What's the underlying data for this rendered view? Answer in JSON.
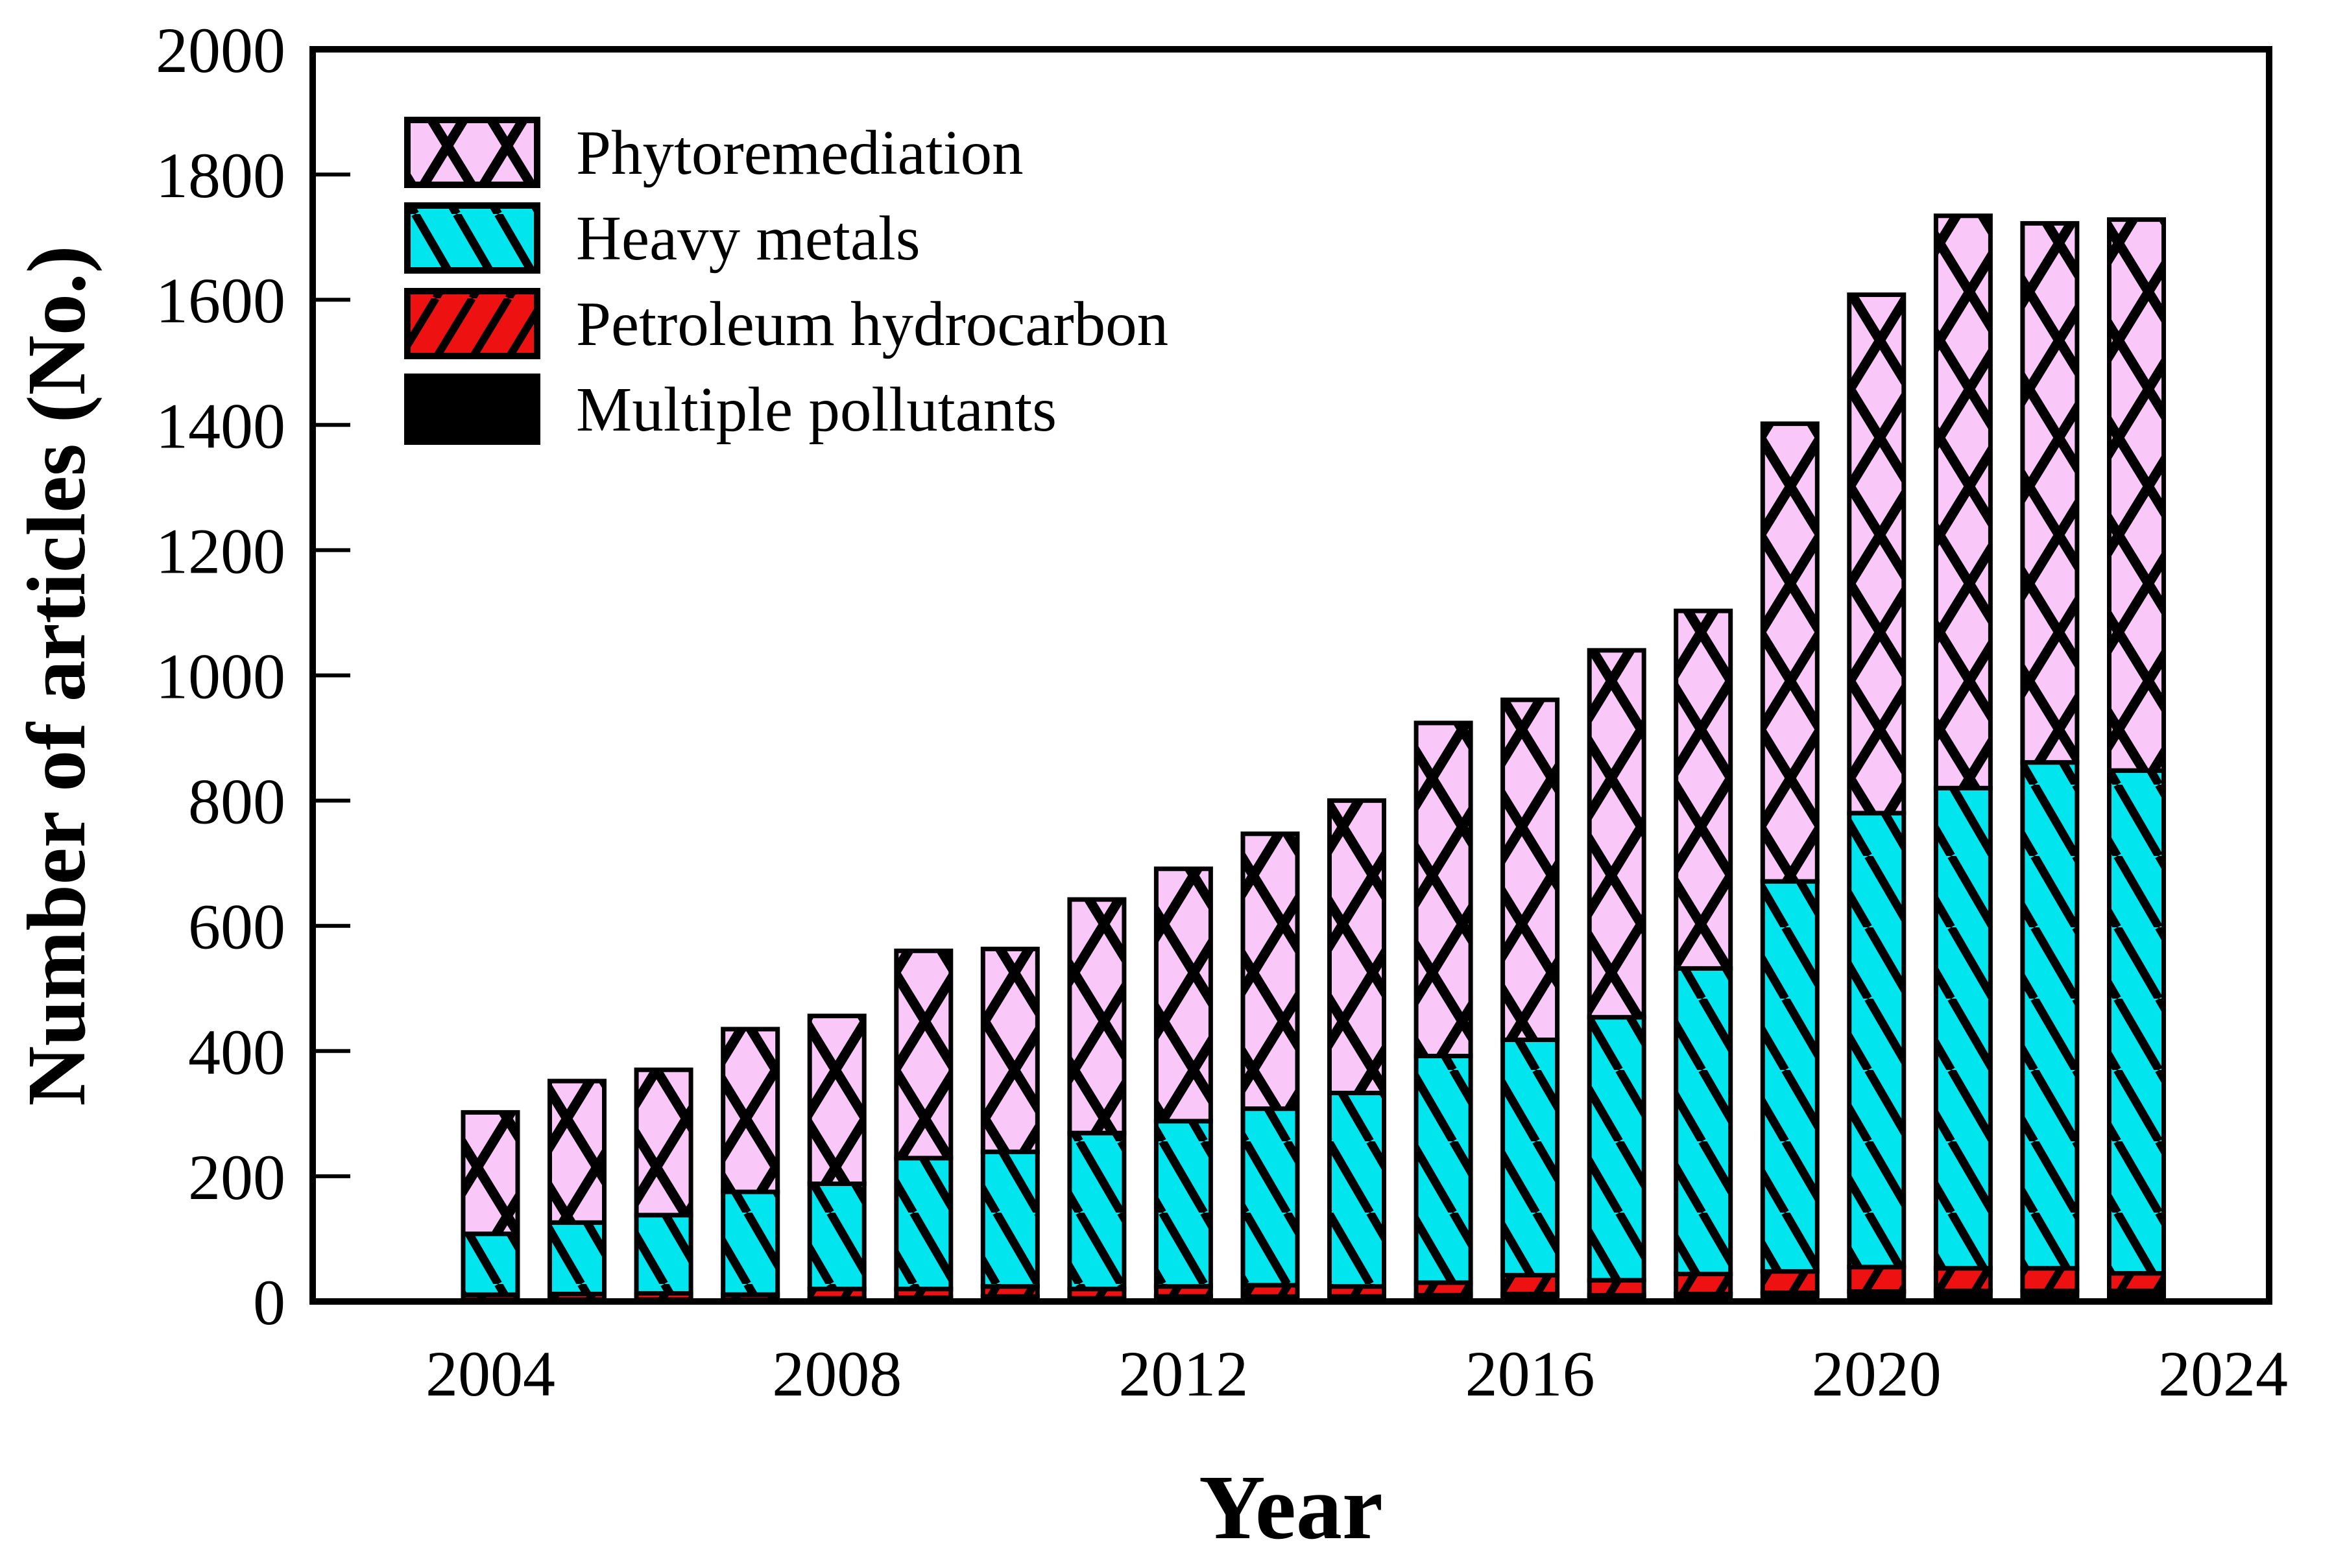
{
  "figure": {
    "background": "#ffffff",
    "y_axis": {
      "title": "Number of articles (No.)",
      "min": 0,
      "max": 2000,
      "major_tick_step": 200,
      "tick_labels": [
        "0",
        "200",
        "400",
        "600",
        "800",
        "1000",
        "1200",
        "1400",
        "1600",
        "1800",
        "2000"
      ]
    },
    "x_axis": {
      "title": "Year",
      "tick_labels": [
        "2004",
        "2008",
        "2012",
        "2016",
        "2020",
        "2024"
      ],
      "tick_years": [
        2004,
        2008,
        2012,
        2016,
        2020,
        2024
      ]
    },
    "legend": {
      "position": "upper-left",
      "entries": [
        {
          "label": "Phytoremediation",
          "pattern": "crosshatch",
          "color": "#FAC8F8"
        },
        {
          "label": "Heavy metals",
          "pattern": "backslash",
          "color": "#00E5EE"
        },
        {
          "label": "Petroleum hydrocarbon",
          "pattern": "slash",
          "color": "#EE1111"
        },
        {
          "label": "Multiple pollutants",
          "pattern": "solid",
          "color": "#000000"
        }
      ]
    },
    "colors": {
      "phytoremediation": "#FAC8F8",
      "heavy_metals": "#00E5EE",
      "petroleum_hydrocarbon": "#EE1111",
      "multiple_pollutants": "#000000",
      "outline": "#000000"
    }
  },
  "chart_data": {
    "type": "bar",
    "stacked": true,
    "grid": false,
    "title": "",
    "xlabel": "Year",
    "ylabel": "Number of articles (No.)",
    "ylim": [
      0,
      2000
    ],
    "categories": [
      2004,
      2005,
      2006,
      2007,
      2008,
      2009,
      2010,
      2011,
      2012,
      2013,
      2014,
      2015,
      2016,
      2017,
      2018,
      2019,
      2020,
      2021,
      2022,
      2023
    ],
    "series": [
      {
        "name": "Multiple pollutants",
        "pattern": "solid",
        "color": "#000000",
        "values": [
          3,
          3,
          3,
          3,
          5,
          6,
          8,
          5,
          8,
          8,
          8,
          10,
          12,
          10,
          12,
          14,
          16,
          17,
          17,
          17
        ]
      },
      {
        "name": "Petroleum hydrocarbon",
        "pattern": "slash",
        "color": "#EE1111",
        "values": [
          8,
          9,
          10,
          8,
          15,
          14,
          16,
          15,
          16,
          18,
          16,
          20,
          30,
          24,
          32,
          34,
          39,
          36,
          36,
          28
        ]
      },
      {
        "name": "Heavy metals",
        "pattern": "backslash",
        "color": "#00E5EE",
        "values": [
          97,
          114,
          125,
          164,
          168,
          209,
          215,
          249,
          264,
          282,
          309,
          362,
          376,
          420,
          488,
          623,
          725,
          767,
          808,
          803
        ]
      },
      {
        "name": "Phytoremediation",
        "pattern": "crosshatch",
        "color": "#FAC8F8",
        "values": [
          194,
          226,
          232,
          260,
          268,
          331,
          324,
          373,
          403,
          439,
          467,
          532,
          543,
          586,
          571,
          731,
          828,
          914,
          861,
          880
        ]
      }
    ],
    "totals": [
      302,
      352,
      370,
      435,
      456,
      560,
      563,
      642,
      691,
      747,
      800,
      924,
      961,
      1040,
      1103,
      1402,
      1608,
      1734,
      1722,
      1728
    ]
  }
}
